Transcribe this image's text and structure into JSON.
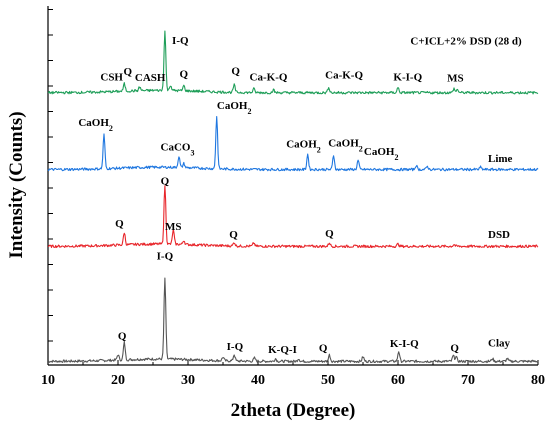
{
  "chart_data": {
    "type": "line",
    "xlabel": "2theta (Degree)",
    "ylabel": "Intensity (Counts)",
    "xlim": [
      10,
      80
    ],
    "xticks": [
      "10",
      "20",
      "30",
      "40",
      "50",
      "60",
      "70",
      "80"
    ],
    "grid": false,
    "series": [
      {
        "name": "Clay",
        "label": "Clay",
        "color": "#555555",
        "baseline": 0.8,
        "peaks": [
          [
            20.0,
            1.2
          ],
          [
            20.9,
            3.8
          ],
          [
            26.7,
            17.5
          ],
          [
            35.0,
            0.8
          ],
          [
            36.6,
            1.4
          ],
          [
            39.5,
            0.7
          ],
          [
            42.5,
            0.6
          ],
          [
            45.8,
            0.6
          ],
          [
            50.2,
            1.4
          ],
          [
            55.0,
            1.0
          ],
          [
            60.1,
            2.2
          ],
          [
            67.9,
            1.2
          ],
          [
            68.3,
            1.0
          ],
          [
            73.5,
            0.6
          ],
          [
            75.6,
            0.6
          ]
        ],
        "annotations": [
          {
            "text": "Q",
            "x": 20.6,
            "y": 5.5
          },
          {
            "text": "I-Q",
            "x": 26.7,
            "y": 22.9
          },
          {
            "text": "I-Q",
            "x": 36.7,
            "y": 3.3
          },
          {
            "text": "K-Q-I",
            "x": 43.5,
            "y": 2.6
          },
          {
            "text": "Q",
            "x": 49.3,
            "y": 2.9
          },
          {
            "text": "K-I-Q",
            "x": 60.9,
            "y": 3.9
          },
          {
            "text": "Q",
            "x": 68.1,
            "y": 2.9
          }
        ]
      },
      {
        "name": "DSD",
        "label": "DSD",
        "color": "#e8262b",
        "baseline": 25.8,
        "peaks": [
          [
            20.9,
            2.7
          ],
          [
            26.7,
            12.8
          ],
          [
            27.9,
            3.1
          ],
          [
            29.4,
            0.9
          ],
          [
            36.6,
            0.8
          ],
          [
            39.4,
            0.7
          ],
          [
            50.2,
            0.8
          ],
          [
            60.0,
            0.5
          ],
          [
            68.0,
            0.4
          ]
        ],
        "annotations": [
          {
            "text": "Q",
            "x": 20.2,
            "y": 30.0
          },
          {
            "text": "Q",
            "x": 26.7,
            "y": 39.2
          },
          {
            "text": "MS",
            "x": 27.9,
            "y": 29.4
          },
          {
            "text": "Q",
            "x": 36.5,
            "y": 27.6
          },
          {
            "text": "Q",
            "x": 50.2,
            "y": 27.8
          }
        ]
      },
      {
        "name": "Lime",
        "label": "Lime",
        "color": "#1f77e0",
        "baseline": 42.5,
        "peaks": [
          [
            18.0,
            7.4
          ],
          [
            28.7,
            2.4
          ],
          [
            29.4,
            0.9
          ],
          [
            34.1,
            11.4
          ],
          [
            47.1,
            3.3
          ],
          [
            50.8,
            3.1
          ],
          [
            54.3,
            2.0
          ],
          [
            62.6,
            0.9
          ],
          [
            64.2,
            0.7
          ],
          [
            71.8,
            0.5
          ]
        ],
        "annotations": [
          {
            "text": "CaOH2",
            "x": 16.8,
            "y": 52.0
          },
          {
            "text": "CaCO3",
            "x": 28.5,
            "y": 46.6
          },
          {
            "text": "CaOH2",
            "x": 36.6,
            "y": 55.7
          },
          {
            "text": "CaOH2",
            "x": 46.5,
            "y": 47.3
          },
          {
            "text": "CaOH2",
            "x": 52.5,
            "y": 47.5
          },
          {
            "text": "CaOH2",
            "x": 57.6,
            "y": 45.6
          }
        ]
      },
      {
        "name": "C+ICL+2% DSD (28 d)",
        "label": "C+ICL+2% DSD (28 d)",
        "color": "#1e9e58",
        "baseline": 59.2,
        "peaks": [
          [
            20.9,
            1.6
          ],
          [
            23.1,
            0.8
          ],
          [
            26.7,
            12.9
          ],
          [
            27.5,
            1.2
          ],
          [
            29.4,
            1.1
          ],
          [
            36.6,
            1.6
          ],
          [
            39.4,
            0.8
          ],
          [
            42.2,
            0.6
          ],
          [
            50.1,
            1.2
          ],
          [
            60.0,
            1.1
          ],
          [
            68.0,
            0.9
          ],
          [
            68.5,
            0.7
          ]
        ],
        "annotations": [
          {
            "text": "CSH",
            "x": 19.1,
            "y": 61.9
          },
          {
            "text": "Q",
            "x": 21.4,
            "y": 63.0
          },
          {
            "text": "CASH",
            "x": 24.6,
            "y": 61.7
          },
          {
            "text": "I-Q",
            "x": 28.9,
            "y": 69.8
          },
          {
            "text": "Q",
            "x": 29.4,
            "y": 62.5
          },
          {
            "text": "Q",
            "x": 36.8,
            "y": 63.2
          },
          {
            "text": "Ca-K-Q",
            "x": 41.5,
            "y": 61.8
          },
          {
            "text": "Ca-K-Q",
            "x": 52.3,
            "y": 62.3
          },
          {
            "text": "K-I-Q",
            "x": 61.4,
            "y": 61.9
          },
          {
            "text": "MS",
            "x": 68.2,
            "y": 61.6
          }
        ]
      }
    ]
  },
  "legend_sub": "2"
}
